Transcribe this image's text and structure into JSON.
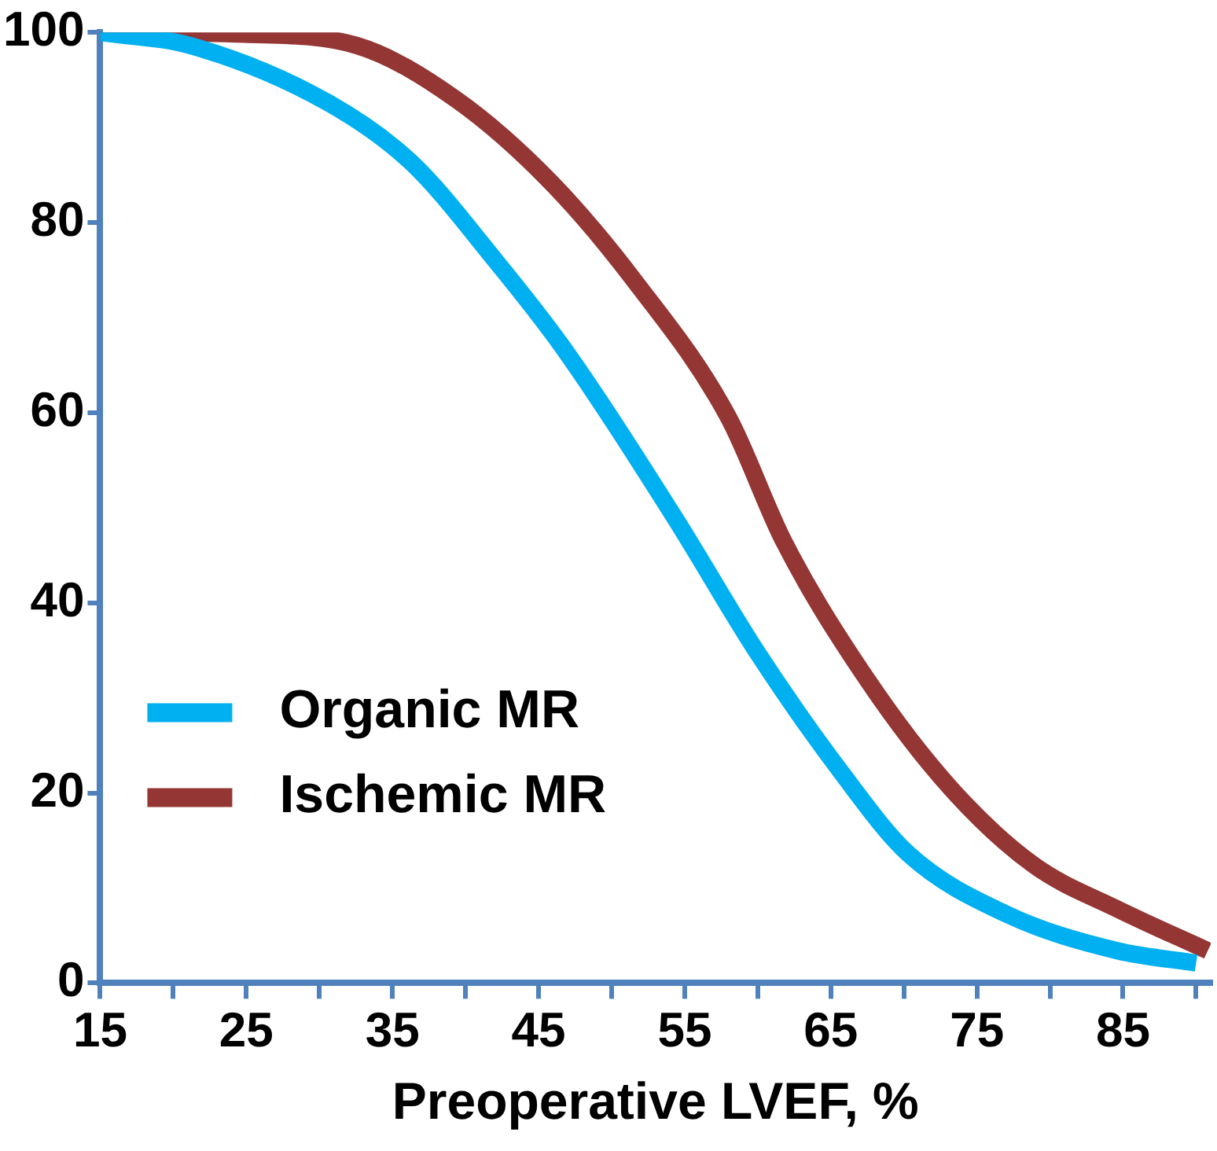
{
  "chart_data": {
    "type": "line",
    "xlabel": "Preoperative LVEF, %",
    "xlim": [
      15,
      91
    ],
    "ylim": [
      0,
      100
    ],
    "xticks": [
      15,
      {
        "value": 20,
        "label": null
      },
      25,
      {
        "value": 30,
        "label": null
      },
      35,
      {
        "value": 40,
        "label": null
      },
      45,
      {
        "value": 50,
        "label": null
      },
      55,
      {
        "value": 60,
        "label": null
      },
      65,
      {
        "value": 70,
        "label": null
      },
      75,
      {
        "value": 80,
        "label": null
      },
      85,
      {
        "value": 90,
        "label": null
      }
    ],
    "yticks": [
      0,
      20,
      40,
      60,
      80,
      100
    ],
    "grid": false,
    "legend": "bottom left",
    "marker": "none",
    "line_style": "solid",
    "series": [
      {
        "name": "Organic MR",
        "color": "#00b0f0",
        "x": [
          15,
          21.2,
          30.6,
          36.3,
          42.1,
          46.6,
          54.3,
          60,
          65.7,
          70.3,
          77.1,
          84.6,
          90
        ],
        "values": [
          100,
          98.6,
          92.6,
          86.3,
          75.9,
          67,
          49,
          34.7,
          22.2,
          13.6,
          7.2,
          3.4,
          2.1
        ]
      },
      {
        "name": "Ischemic MR",
        "color": "#943634",
        "x": [
          15,
          24.9,
          32.6,
          39.4,
          45.8,
          51.5,
          58,
          61.8,
          67.5,
          73.2,
          78.9,
          84.6,
          90.8
        ],
        "values": [
          100,
          99.8,
          98.6,
          92.9,
          84.3,
          74,
          59.5,
          46.4,
          31.9,
          20.5,
          12.4,
          7.8,
          3.4
        ]
      }
    ]
  }
}
